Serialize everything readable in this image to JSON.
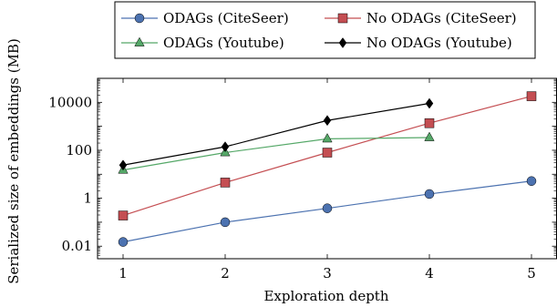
{
  "chart_data": {
    "type": "line",
    "xlabel": "Exploration depth",
    "ylabel": "Serialized size of embeddings (MB)",
    "y_scale": "log10",
    "xlim": [
      0.75,
      5.25
    ],
    "ylim": [
      0.003,
      100000
    ],
    "x_ticks": [
      1,
      2,
      3,
      4,
      5
    ],
    "y_ticks": [
      {
        "value": 0.01,
        "label": "0.01"
      },
      {
        "value": 1,
        "label": "1"
      },
      {
        "value": 100,
        "label": "100"
      },
      {
        "value": 10000,
        "label": "10000"
      }
    ],
    "grid": false,
    "legend_position": "top-center",
    "series": [
      {
        "name": "ODAGs (CiteSeer)",
        "color": "#4c72b0",
        "marker": "circle",
        "x": [
          1,
          2,
          3,
          4,
          5
        ],
        "values": [
          0.015,
          0.1,
          0.38,
          1.5,
          5.2
        ]
      },
      {
        "name": "No ODAGs (CiteSeer)",
        "color": "#c44e52",
        "marker": "square",
        "x": [
          1,
          2,
          3,
          4,
          5
        ],
        "values": [
          0.19,
          4.5,
          80,
          1350,
          18000
        ]
      },
      {
        "name": "ODAGs (Youtube)",
        "color": "#55a868",
        "marker": "triangle",
        "x": [
          1,
          2,
          3,
          4
        ],
        "values": [
          15,
          80,
          300,
          340
        ]
      },
      {
        "name": "No ODAGs (Youtube)",
        "color": "#000000",
        "marker": "diamond",
        "x": [
          1,
          2,
          3,
          4
        ],
        "values": [
          24,
          140,
          1750,
          9000
        ]
      }
    ]
  }
}
